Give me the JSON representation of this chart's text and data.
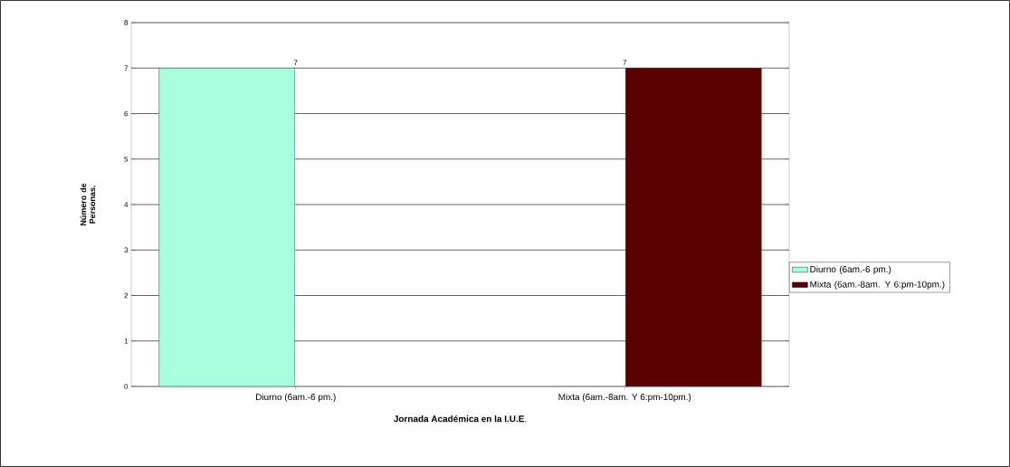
{
  "chart_data": {
    "type": "bar",
    "xlabel": "**Jornada Académica en la I.U.E**.",
    "ylabel": "Número de Personas.",
    "categories": [
      "Diurno (6am.-6 pm.)",
      "Mixta (6am.-8am. Y 6:pm-10pm.)"
    ],
    "series": [
      {
        "name": "Diurno (6am.-6 pm.)",
        "color": "#a8ffe0",
        "values": [
          7,
          null
        ]
      },
      {
        "name": "Mixta (6am.-8am. Y 6:pm-10pm.)",
        "color": "#5a0000",
        "values": [
          null,
          7
        ]
      }
    ],
    "ylim": [
      0,
      8
    ],
    "yticks": [
      0,
      1,
      2,
      3,
      4,
      5,
      6,
      7,
      8
    ],
    "grid": "y",
    "legend": "right",
    "data_labels": true
  }
}
